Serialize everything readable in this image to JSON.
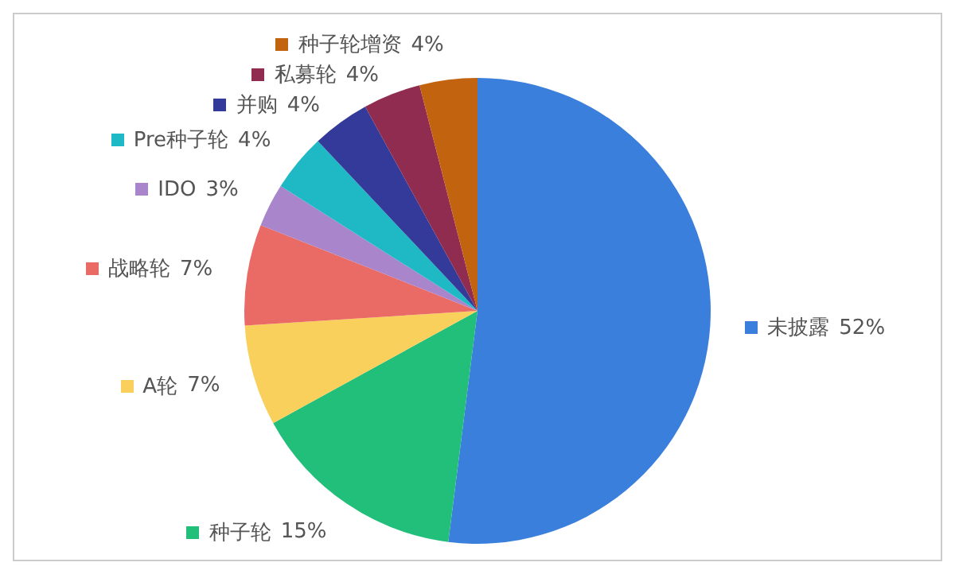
{
  "chart_data": {
    "type": "pie",
    "categories": [
      "未披露",
      "种子轮",
      "A轮",
      "战略轮",
      "IDO",
      "Pre种子轮",
      "并购",
      "私募轮",
      "种子轮增资"
    ],
    "values": [
      52,
      15,
      7,
      7,
      3,
      4,
      4,
      4,
      4
    ],
    "value_labels": [
      "52%",
      "15%",
      "7%",
      "7%",
      "3%",
      "4%",
      "4%",
      "4%",
      "4%"
    ],
    "colors": [
      "#3a7fdc",
      "#22bf7a",
      "#f9d05c",
      "#ea6a66",
      "#a985cc",
      "#1fb9c6",
      "#343a99",
      "#8f2c4f",
      "#c2630f"
    ],
    "legend": "left"
  }
}
